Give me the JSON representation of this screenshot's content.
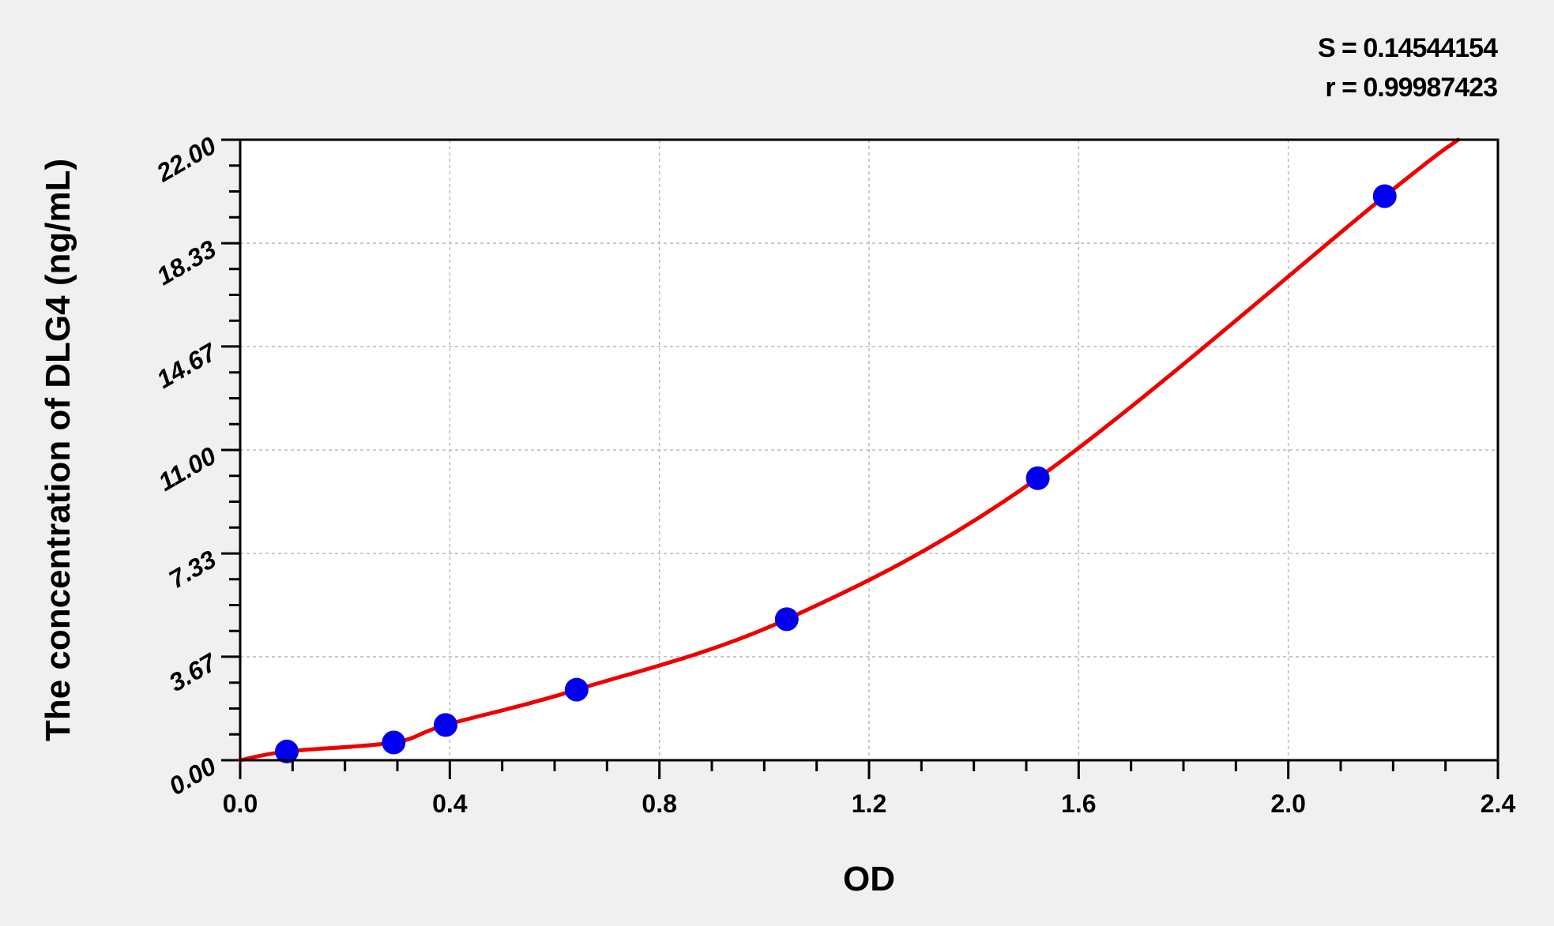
{
  "chart_data": {
    "type": "scatter",
    "title": "",
    "xlabel": "OD",
    "ylabel": "The concentration of DLG4 (ng/mL)",
    "xlim": [
      0,
      2.4
    ],
    "ylim": [
      0,
      22
    ],
    "x_ticks": [
      "0.0",
      "0.4",
      "0.8",
      "1.2",
      "1.6",
      "2.0",
      "2.4"
    ],
    "y_ticks": [
      "0.00",
      "3.67",
      "7.33",
      "11.00",
      "14.67",
      "18.33",
      "22.00"
    ],
    "grid": true,
    "points": [
      {
        "x": 0.089,
        "y": 0.31
      },
      {
        "x": 0.293,
        "y": 0.63
      },
      {
        "x": 0.392,
        "y": 1.25
      },
      {
        "x": 0.642,
        "y": 2.5
      },
      {
        "x": 1.043,
        "y": 5
      },
      {
        "x": 1.522,
        "y": 10
      },
      {
        "x": 2.184,
        "y": 20
      }
    ],
    "fit_line": true,
    "annotations": {
      "s": "S = 0.14544154",
      "r": "r = 0.99987423"
    },
    "colors": {
      "points": "#0000ee",
      "fit": "#ee0000",
      "background": "#f0f0f0",
      "plot": "#ffffff"
    }
  }
}
